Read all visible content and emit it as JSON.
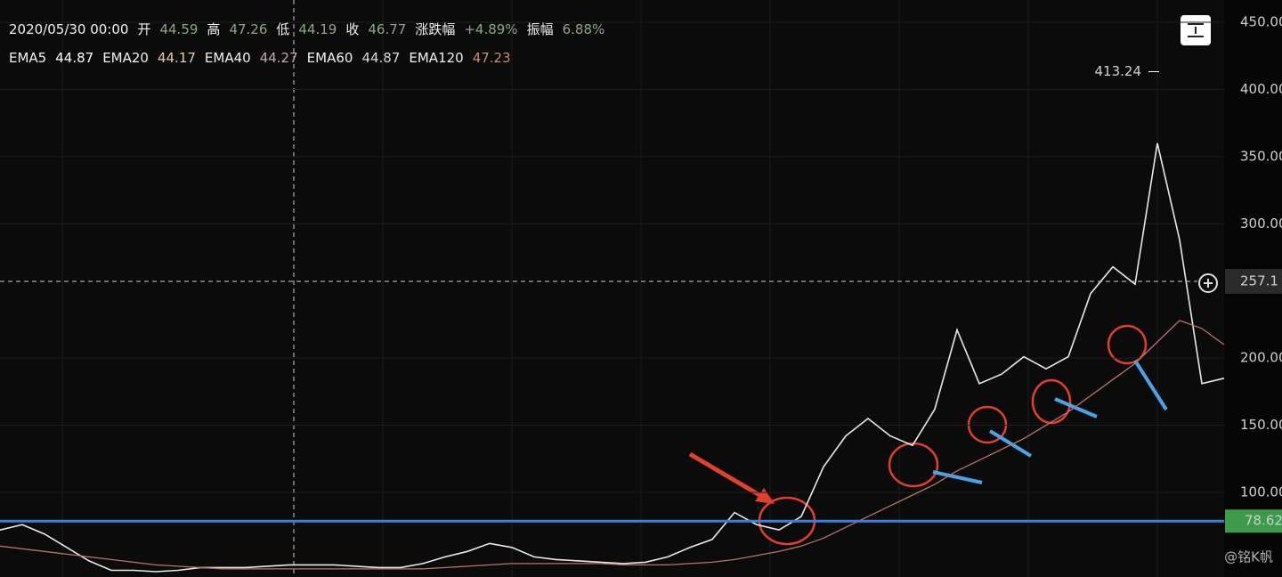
{
  "header": {
    "datetime": "2020/05/30 00:00",
    "fields": [
      {
        "name": "开",
        "value": "44.59"
      },
      {
        "name": "高",
        "value": "47.26"
      },
      {
        "name": "低",
        "value": "44.19"
      },
      {
        "name": "收",
        "value": "46.77"
      },
      {
        "name": "涨跌幅",
        "value": "+4.89%"
      },
      {
        "name": "振幅",
        "value": "6.88%"
      }
    ],
    "ema": [
      {
        "name": "EMA5",
        "value": "44.87",
        "color": "#ffffff"
      },
      {
        "name": "EMA20",
        "value": "44.17",
        "color": "#e8c8b0"
      },
      {
        "name": "EMA40",
        "value": "44.27",
        "color": "#c9a0b8"
      },
      {
        "name": "EMA60",
        "value": "44.87",
        "color": "#d8d8d8"
      },
      {
        "name": "EMA120",
        "value": "47.23",
        "color": "#c98a7e"
      }
    ]
  },
  "watermark": "@铭K帆",
  "chart_data": {
    "type": "line",
    "series": [
      {
        "name": "Close",
        "color": "#e8e8e8",
        "values": [
          72,
          76,
          69,
          59,
          49,
          42,
          42,
          41,
          42,
          44,
          44,
          44,
          45,
          46,
          46,
          46,
          45,
          44,
          44,
          47,
          52,
          56,
          62,
          59,
          52,
          50,
          49,
          48,
          47,
          48,
          52,
          59,
          65,
          85,
          76,
          72,
          82,
          119,
          142,
          155,
          142,
          135,
          162,
          221,
          181,
          188,
          201,
          192,
          201,
          248,
          268,
          255,
          360,
          288,
          181,
          185
        ]
      },
      {
        "name": "EMA120",
        "color": "#b9746a",
        "values": [
          60,
          58,
          56,
          54,
          52,
          50,
          48,
          46,
          45,
          44,
          43,
          43,
          43,
          43,
          43,
          43,
          43,
          43,
          43,
          43,
          44,
          45,
          46,
          47,
          47,
          47,
          47,
          47,
          46,
          46,
          46,
          47,
          48,
          50,
          53,
          56,
          60,
          66,
          74,
          82,
          90,
          98,
          106,
          116,
          124,
          132,
          140,
          150,
          160,
          172,
          184,
          196,
          212,
          228,
          222,
          210
        ]
      }
    ],
    "ylim": [
      37,
      466.6
    ],
    "yticks": [
      {
        "value": 100,
        "label": "100.00"
      },
      {
        "value": 150,
        "label": "150.00"
      },
      {
        "value": 200,
        "label": "200.00"
      },
      {
        "value": 300,
        "label": "300.00"
      },
      {
        "value": 350,
        "label": "350.00"
      },
      {
        "value": 400,
        "label": "400.00"
      },
      {
        "value": 450,
        "label": "450.00"
      }
    ],
    "max_label": {
      "value": 413.24,
      "label": "413.24"
    },
    "crosshair": {
      "value": 257.1,
      "label": "257.1"
    },
    "level_line": {
      "value": 78.62,
      "label": "78.62",
      "color": "#3a7fe0"
    }
  }
}
